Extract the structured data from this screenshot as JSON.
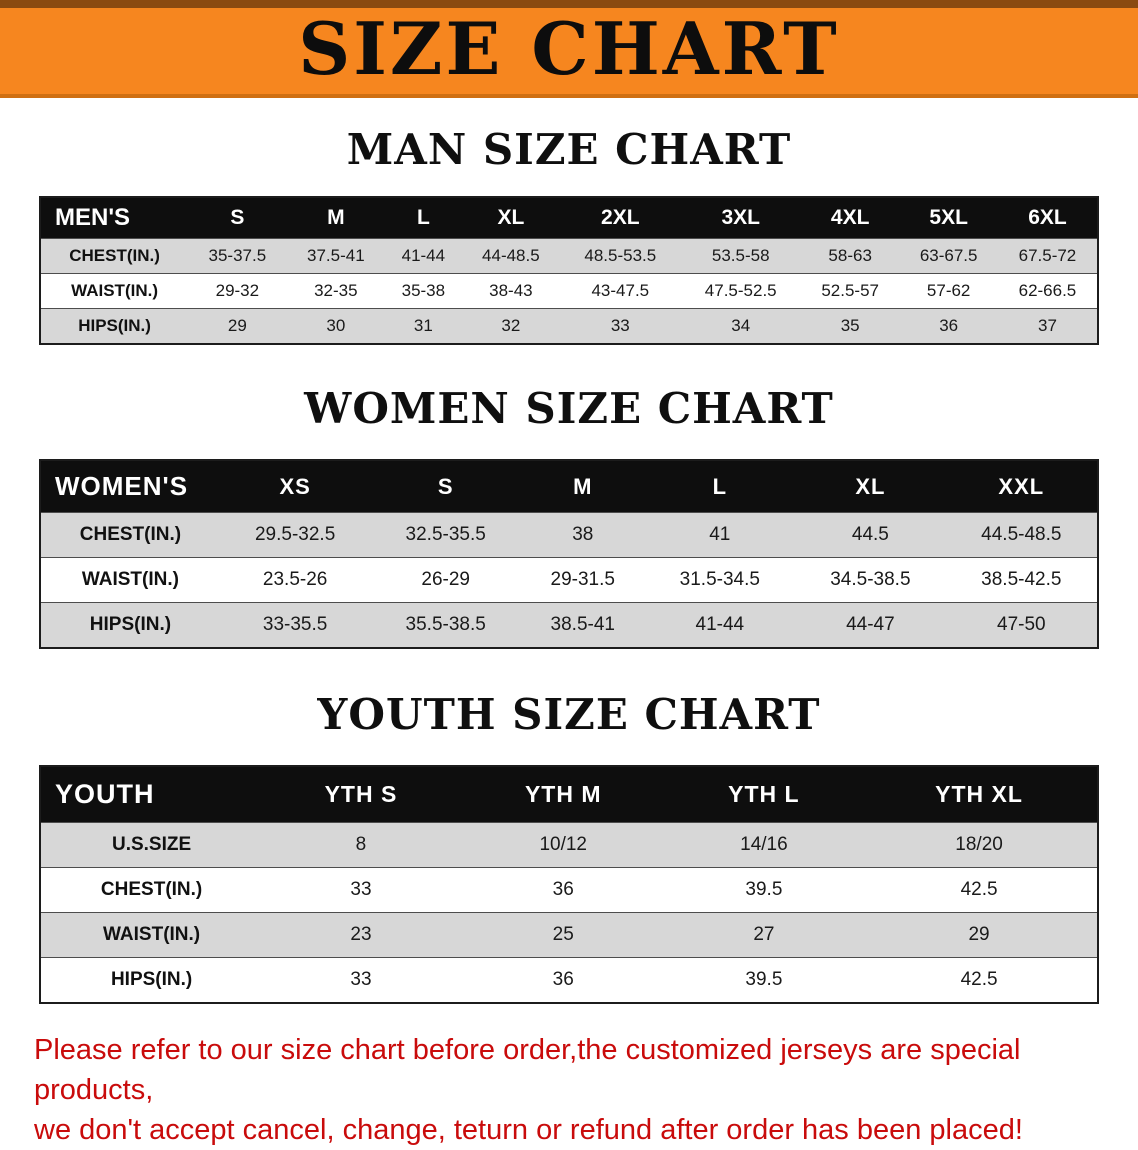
{
  "banner": {
    "title": "SIZE CHART",
    "bg_color": "#F6861F",
    "text_color": "#0d0d0d"
  },
  "sections": [
    {
      "heading": "MAN SIZE CHART",
      "table": {
        "header": [
          "MEN'S",
          "S",
          "M",
          "L",
          "XL",
          "2XL",
          "3XL",
          "4XL",
          "5XL",
          "6XL"
        ],
        "rows": [
          [
            "CHEST(IN.)",
            "35-37.5",
            "37.5-41",
            "41-44",
            "44-48.5",
            "48.5-53.5",
            "53.5-58",
            "58-63",
            "63-67.5",
            "67.5-72"
          ],
          [
            "WAIST(IN.)",
            "29-32",
            "32-35",
            "35-38",
            "38-43",
            "43-47.5",
            "47.5-52.5",
            "52.5-57",
            "57-62",
            "62-66.5"
          ],
          [
            "HIPS(IN.)",
            "29",
            "30",
            "31",
            "32",
            "33",
            "34",
            "35",
            "36",
            "37"
          ]
        ]
      }
    },
    {
      "heading": "WOMEN SIZE CHART",
      "table": {
        "header": [
          "WOMEN'S",
          "XS",
          "S",
          "M",
          "L",
          "XL",
          "XXL"
        ],
        "rows": [
          [
            "CHEST(IN.)",
            "29.5-32.5",
            "32.5-35.5",
            "38",
            "41",
            "44.5",
            "44.5-48.5"
          ],
          [
            "WAIST(IN.)",
            "23.5-26",
            "26-29",
            "29-31.5",
            "31.5-34.5",
            "34.5-38.5",
            "38.5-42.5"
          ],
          [
            "HIPS(IN.)",
            "33-35.5",
            "35.5-38.5",
            "38.5-41",
            "41-44",
            "44-47",
            "47-50"
          ]
        ]
      }
    },
    {
      "heading": "YOUTH SIZE CHART",
      "table": {
        "header": [
          "YOUTH",
          "YTH S",
          "YTH M",
          "YTH L",
          "YTH XL"
        ],
        "rows": [
          [
            "U.S.SIZE",
            "8",
            "10/12",
            "14/16",
            "18/20"
          ],
          [
            "CHEST(IN.)",
            "33",
            "36",
            "39.5",
            "42.5"
          ],
          [
            "WAIST(IN.)",
            "23",
            "25",
            "27",
            "29"
          ],
          [
            "HIPS(IN.)",
            "33",
            "36",
            "39.5",
            "42.5"
          ]
        ]
      }
    }
  ],
  "footer": {
    "line1": "Please refer to our size chart before order,the customized jerseys are special products,",
    "line2": "we don't accept cancel, change, teturn or refund after order has been placed!",
    "text_color": "#c90b0b"
  }
}
